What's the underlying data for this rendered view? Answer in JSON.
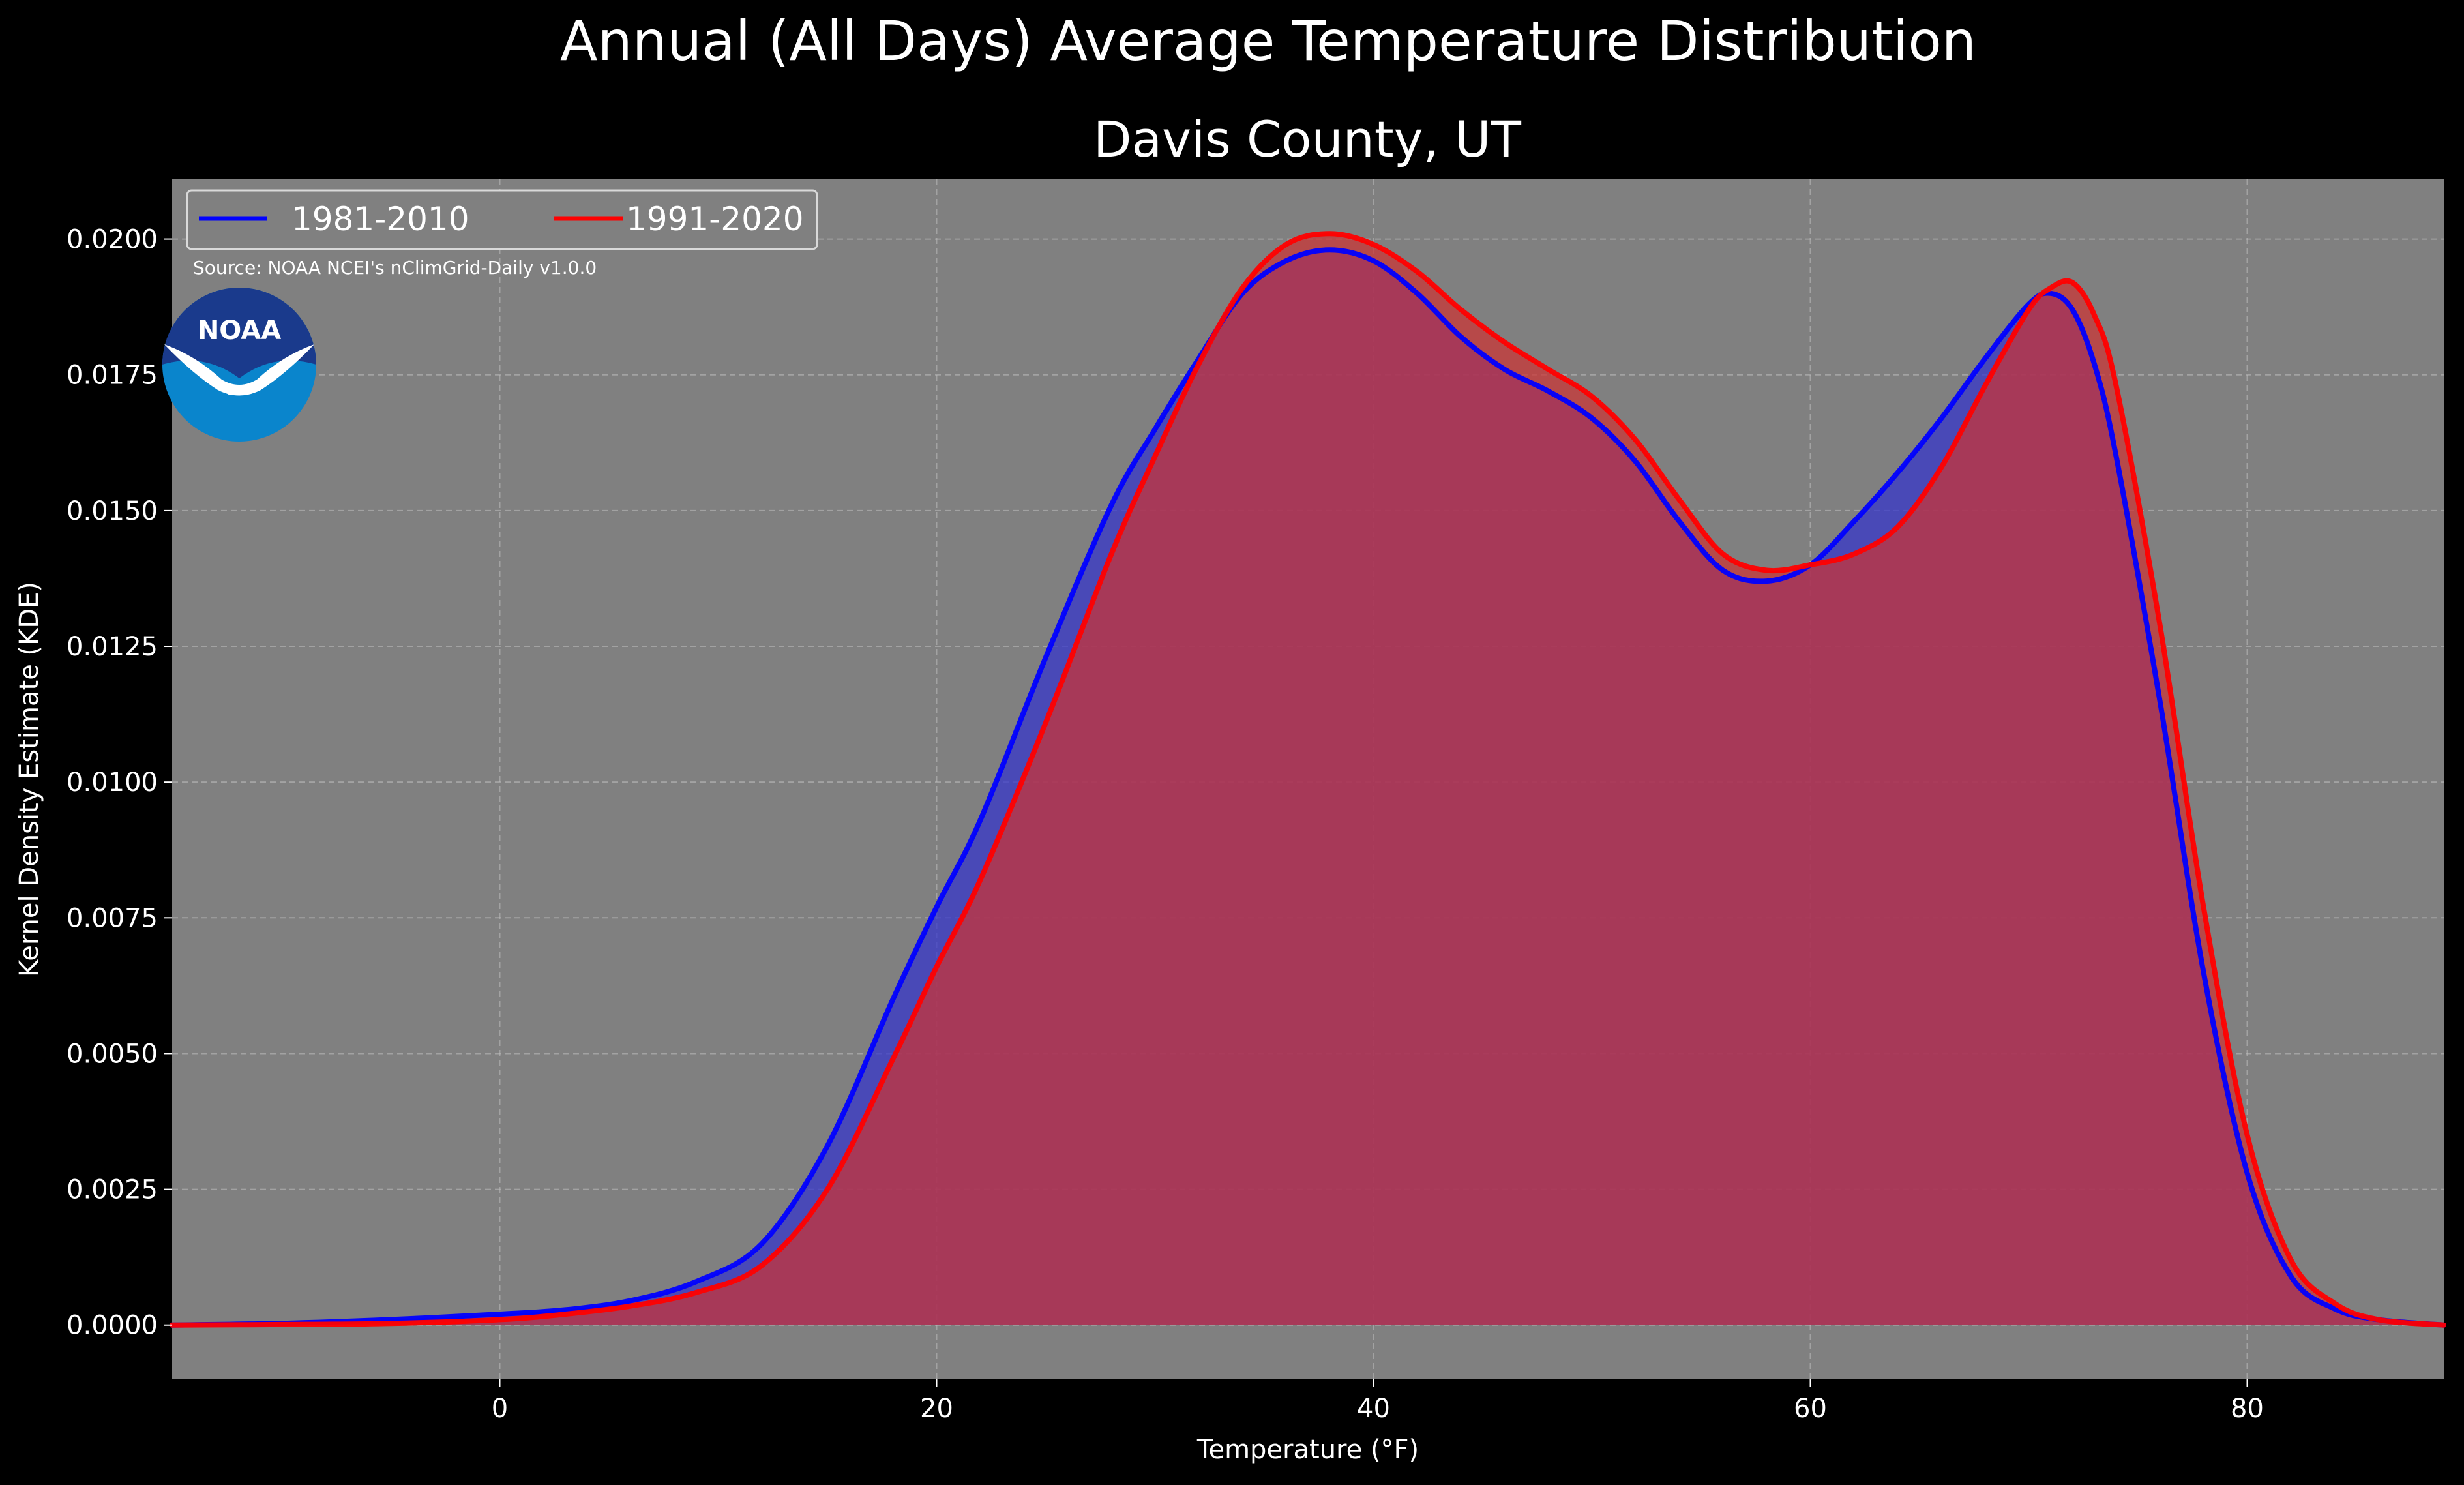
{
  "chart_data": {
    "type": "area",
    "title": "Annual (All Days) Average Temperature Distribution",
    "subtitle": "Davis County, UT",
    "xlabel": "Temperature ($^\\circ$F)",
    "xlabel_display": "Temperature (°F)",
    "ylabel": "Kernel Density Estimate (KDE)",
    "xlim": [
      -15,
      89
    ],
    "ylim": [
      -0.001,
      0.0211
    ],
    "x_ticks": [
      0,
      20,
      40,
      60,
      80
    ],
    "x_tick_labels": [
      "0",
      "20",
      "40",
      "60",
      "80"
    ],
    "y_ticks": [
      0.0,
      0.0025,
      0.005,
      0.0075,
      0.01,
      0.0125,
      0.015,
      0.0175,
      0.02
    ],
    "y_tick_labels": [
      "0.0000",
      "0.0025",
      "0.0050",
      "0.0075",
      "0.0100",
      "0.0125",
      "0.0150",
      "0.0175",
      "0.0200"
    ],
    "grid": true,
    "legend_position": "top-left",
    "annotation": "Source: NOAA NCEI's nClimGrid-Daily v1.0.0",
    "logo_text": "NOAA",
    "series": [
      {
        "name": "1981-2010",
        "color": "#0000ff",
        "fill": "#3333cc",
        "x": [
          -15,
          -10,
          -5,
          0,
          3,
          6,
          9,
          12,
          15,
          18,
          20,
          22,
          25,
          28,
          30,
          32,
          34,
          36,
          38,
          40,
          42,
          44,
          46,
          48,
          50,
          52,
          54,
          56,
          58,
          60,
          62,
          64,
          66,
          68,
          70,
          71,
          72,
          73,
          74,
          76,
          78,
          80,
          82,
          84,
          86,
          89
        ],
        "y": [
          0.0,
          3e-05,
          0.0001,
          0.0002,
          0.00028,
          0.00045,
          0.0008,
          0.0015,
          0.0033,
          0.006,
          0.0077,
          0.0093,
          0.0123,
          0.0151,
          0.0165,
          0.0178,
          0.019,
          0.0196,
          0.0198,
          0.0196,
          0.019,
          0.0182,
          0.0176,
          0.0172,
          0.0167,
          0.0159,
          0.0148,
          0.0139,
          0.0137,
          0.014,
          0.0148,
          0.0157,
          0.0167,
          0.0178,
          0.0188,
          0.019,
          0.0187,
          0.0177,
          0.016,
          0.0115,
          0.0065,
          0.0028,
          0.0009,
          0.0003,
          0.0001,
          0.0
        ]
      },
      {
        "name": "1991-2020",
        "color": "#ff0000",
        "fill": "#cc3333",
        "x": [
          -15,
          -10,
          -5,
          0,
          3,
          6,
          9,
          12,
          15,
          18,
          20,
          22,
          25,
          28,
          30,
          32,
          34,
          36,
          38,
          40,
          42,
          44,
          46,
          48,
          50,
          52,
          54,
          56,
          58,
          60,
          62,
          64,
          66,
          68,
          70,
          71,
          72,
          73,
          74,
          76,
          78,
          80,
          82,
          84,
          86,
          89
        ],
        "y": [
          0.0,
          1e-05,
          3e-05,
          0.0001,
          0.0002,
          0.00035,
          0.0006,
          0.0011,
          0.0025,
          0.0049,
          0.0066,
          0.0082,
          0.0111,
          0.0142,
          0.016,
          0.0177,
          0.0191,
          0.0199,
          0.0201,
          0.0199,
          0.0194,
          0.0187,
          0.0181,
          0.0176,
          0.0171,
          0.0163,
          0.0152,
          0.0142,
          0.0139,
          0.014,
          0.0142,
          0.0147,
          0.0158,
          0.0173,
          0.0187,
          0.0191,
          0.0192,
          0.0186,
          0.0173,
          0.0129,
          0.0077,
          0.0035,
          0.0012,
          0.0004,
          0.0001,
          0.0
        ]
      }
    ]
  }
}
